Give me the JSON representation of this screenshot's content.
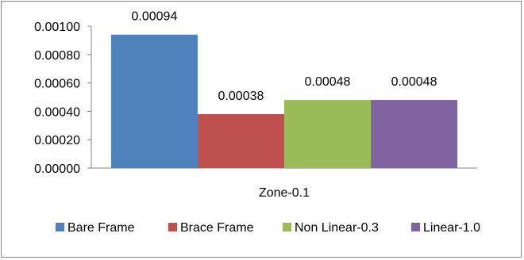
{
  "chart_data": {
    "type": "bar",
    "categories": [
      "Zone-0.1"
    ],
    "series": [
      {
        "name": "Bare Frame",
        "values": [
          0.00094
        ],
        "label": "0.00094",
        "color": "#4f81bd"
      },
      {
        "name": "Brace Frame",
        "values": [
          0.00038
        ],
        "label": "0.00038",
        "color": "#c0504d"
      },
      {
        "name": "Non Linear-0.3",
        "values": [
          0.00048
        ],
        "label": "0.00048",
        "color": "#9bbb59"
      },
      {
        "name": "Linear-1.0",
        "values": [
          0.00048
        ],
        "label": "0.00048",
        "color": "#8064a2"
      }
    ],
    "ylim": [
      0,
      0.001
    ],
    "yticks": [
      "0.00000",
      "0.00020",
      "0.00040",
      "0.00060",
      "0.00080",
      "0.00100"
    ],
    "grid": false,
    "legend_position": "bottom"
  }
}
